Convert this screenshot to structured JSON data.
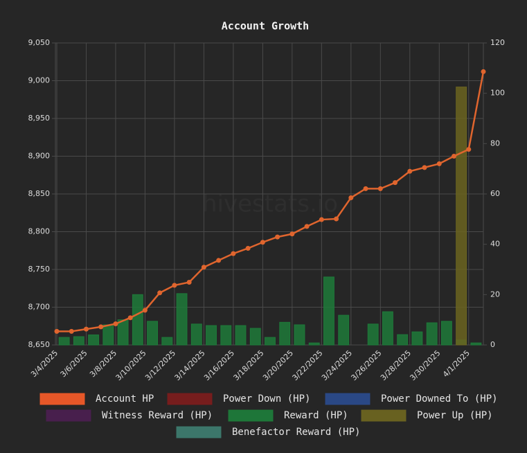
{
  "chart_data": {
    "type": "line-bar",
    "title": "Account Growth",
    "watermark": "hivestats.io",
    "categories": [
      "3/4/2025",
      null,
      "3/6/2025",
      null,
      "3/8/2025",
      null,
      "3/10/2025",
      null,
      "3/12/2025",
      null,
      "3/14/2025",
      null,
      "3/16/2025",
      null,
      "3/18/2025",
      null,
      "3/20/2025",
      null,
      "3/22/2025",
      null,
      "3/24/2025",
      null,
      "3/26/2025",
      null,
      "3/28/2025",
      null,
      "3/30/2025",
      null,
      "4/1/2025",
      null
    ],
    "series": [
      {
        "name": "Account HP",
        "type": "line",
        "color": "#e0652e",
        "legend_color": "#f05a28",
        "values": [
          8668,
          8668,
          8671,
          8674,
          8678,
          8686,
          8696,
          8719,
          8729,
          8733,
          8753,
          8762,
          8771,
          8778,
          8786,
          8793,
          8797,
          8807,
          8816,
          8817,
          8845,
          8857,
          8857,
          8865,
          8880,
          8885,
          8890,
          8900,
          8909,
          9012
        ]
      },
      {
        "name": "Power Down (HP)",
        "color": "#7a1c1c"
      },
      {
        "name": "Power Downed To (HP)",
        "color": "#2a4a8a"
      },
      {
        "name": "Witness Reward (HP)",
        "color": "#4a1f4f"
      },
      {
        "name": "Reward (HP)",
        "type": "bar",
        "axis": "y2",
        "color": "#1e7a3a",
        "values": [
          null,
          3,
          3.3,
          4,
          8,
          10,
          20,
          9.4,
          3,
          20.4,
          8.3,
          7.7,
          7.7,
          7.7,
          6.6,
          3,
          9,
          8,
          0.8,
          27,
          11.8,
          0,
          8.3,
          13.2,
          4.1,
          5.2,
          8.8,
          9.4,
          2,
          0.8
        ]
      },
      {
        "name": "Power Up (HP)",
        "type": "bar",
        "axis": "y2",
        "color": "#6b6420",
        "values": [
          null,
          null,
          null,
          null,
          null,
          null,
          null,
          null,
          null,
          null,
          null,
          null,
          null,
          null,
          null,
          null,
          null,
          null,
          null,
          null,
          null,
          null,
          null,
          null,
          null,
          null,
          null,
          null,
          102.5,
          null
        ]
      },
      {
        "name": "Benefactor Reward (HP)",
        "color": "#3d7a6e"
      }
    ],
    "ylim": [
      8650,
      9050
    ],
    "yticks": [
      {
        "value": 8650,
        "label": "8,650"
      },
      {
        "value": 8700,
        "label": "8,700"
      },
      {
        "value": 8750,
        "label": "8,750"
      },
      {
        "value": 8800,
        "label": "8,800"
      },
      {
        "value": 8850,
        "label": "8,850"
      },
      {
        "value": 8900,
        "label": "8,900"
      },
      {
        "value": 8950,
        "label": "8,950"
      },
      {
        "value": 9000,
        "label": "9,000"
      },
      {
        "value": 9050,
        "label": "9,050"
      }
    ],
    "y2lim": [
      0,
      120
    ],
    "y2ticks": [
      0,
      20,
      40,
      60,
      80,
      100,
      120
    ],
    "grid": true
  }
}
